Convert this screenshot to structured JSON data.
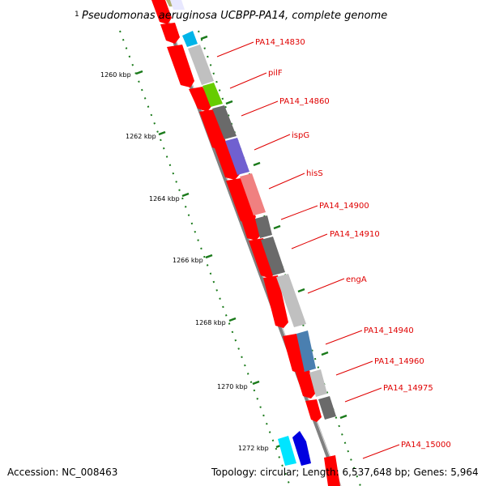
{
  "map": {
    "title_number": "1",
    "title": "Pseudomonas aeruginosa UCBPP-PA14, complete genome",
    "kbp_labels": [
      "1260 kbp",
      "1262 kbp",
      "1264 kbp",
      "1266 kbp",
      "1268 kbp",
      "1270 kbp",
      "1272 kbp"
    ],
    "gene_labels": [
      "PA14_14830",
      "pilF",
      "PA14_14860",
      "ispG",
      "hisS",
      "PA14_14900",
      "PA14_14910",
      "engA",
      "PA14_14940",
      "PA14_14960",
      "PA14_14975",
      "PA14_15000"
    ],
    "colors": {
      "forward_gene": "#ff0000",
      "backbone": "#808080",
      "tick": "#1a7a1a",
      "label": "#e00000",
      "cyan": "#00e5ff",
      "blue": "#0000e0",
      "lightgray": "#c0c0c0",
      "darkgray": "#6a6a6a",
      "green": "#66cc00",
      "purple": "#7060d0",
      "pink": "#f08080",
      "steelblue": "#4a7fb0",
      "olive": "#b0b070"
    }
  },
  "footer": {
    "accession": "Accession: NC_008463",
    "summary": "Topology: circular; Length: 6,537,648 bp; Genes: 5,964"
  }
}
